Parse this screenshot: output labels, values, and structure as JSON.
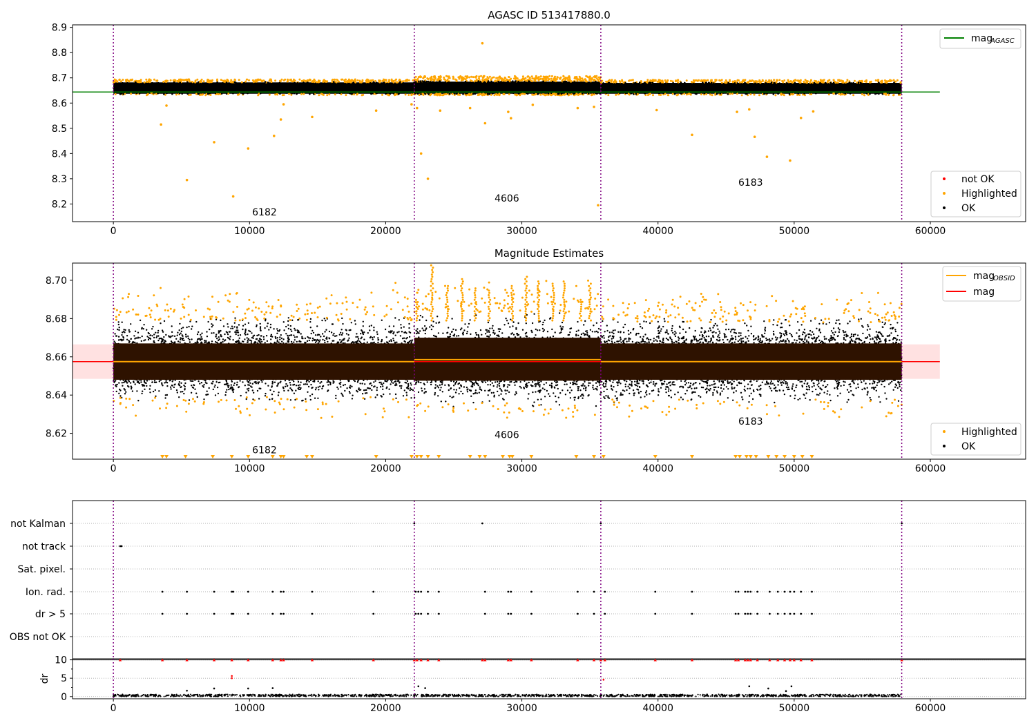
{
  "figure": {
    "title_top": "AGASC ID 513417880.0",
    "title_mid": "Magnitude Estimates"
  },
  "colors": {
    "ok": "#000000",
    "highlighted": "#ffa500",
    "not_ok": "#ff0000",
    "mag_agasc_line": "#008000",
    "mag_line": "#ff0000",
    "mag_obsid_line": "#ffa500",
    "band_fill": "#ffc8c8",
    "dense_fill": "#2e1200",
    "obsid_divider": "#800080"
  },
  "chart_data": [
    {
      "type": "scatter",
      "title": "AGASC ID 513417880.0",
      "xlabel": "",
      "ylabel": "",
      "xlim": [
        -3000,
        67000
      ],
      "ylim": [
        8.13,
        8.91
      ],
      "xticks": [
        0,
        10000,
        20000,
        30000,
        40000,
        50000,
        60000
      ],
      "yticks": [
        8.2,
        8.3,
        8.4,
        8.5,
        8.6,
        8.7,
        8.8,
        8.9
      ],
      "legend_lines": [
        {
          "name": "mag",
          "subscript": "AGASC",
          "color": "#008000"
        }
      ],
      "legend_markers": [
        {
          "name": "not OK",
          "color": "#ff0000"
        },
        {
          "name": "Highlighted",
          "color": "#ffa500"
        },
        {
          "name": "OK",
          "color": "#000000"
        }
      ],
      "lines": [
        {
          "name": "mag_AGASC",
          "x": [
            -3000,
            60700
          ],
          "y": [
            8.644,
            8.644
          ]
        }
      ],
      "obsid_boundaries": [
        0,
        22100,
        35800,
        57900
      ],
      "obsid_labels": [
        {
          "text": "6182",
          "x": 11100,
          "y": 8.155
        },
        {
          "text": "4606",
          "x": 28900,
          "y": 8.21
        },
        {
          "text": "6183",
          "x": 46800,
          "y": 8.272
        }
      ],
      "dense_band": [
        {
          "x": [
            0,
            22100
          ],
          "y": [
            8.637,
            8.682
          ]
        },
        {
          "x": [
            22100,
            35800
          ],
          "y": [
            8.637,
            8.685
          ]
        },
        {
          "x": [
            35800,
            57900
          ],
          "y": [
            8.637,
            8.68
          ]
        }
      ],
      "highlighted_outliers": {
        "x": [
          2800,
          3500,
          3900,
          5400,
          7400,
          8800,
          9900,
          11800,
          12300,
          12500,
          14600,
          19300,
          21900,
          22300,
          22600,
          23100,
          24000,
          26200,
          27100,
          27300,
          29000,
          29200,
          30800,
          34100,
          35300,
          35600,
          39900,
          42500,
          45800,
          46700,
          47100,
          48000,
          49700,
          50500,
          51400,
          52900
        ],
        "y": [
          8.64,
          8.515,
          8.59,
          8.295,
          8.445,
          8.23,
          8.42,
          8.47,
          8.535,
          8.595,
          8.545,
          8.57,
          8.595,
          8.58,
          8.4,
          8.3,
          8.57,
          8.58,
          8.837,
          8.52,
          8.565,
          8.54,
          8.593,
          8.58,
          8.585,
          8.195,
          8.572,
          8.474,
          8.565,
          8.575,
          8.466,
          8.387,
          8.372,
          8.541,
          8.567,
          8.638
        ]
      }
    },
    {
      "type": "scatter",
      "title": "Magnitude Estimates",
      "xlabel": "",
      "ylabel": "",
      "xlim": [
        -3000,
        67000
      ],
      "ylim": [
        8.6065,
        8.709
      ],
      "xticks": [
        0,
        10000,
        20000,
        30000,
        40000,
        50000,
        60000
      ],
      "yticks": [
        8.62,
        8.64,
        8.66,
        8.68,
        8.7
      ],
      "legend_lines": [
        {
          "name": "mag",
          "subscript": "OBSID",
          "color": "#ffa500"
        },
        {
          "name": "mag",
          "subscript": "",
          "color": "#ff0000"
        }
      ],
      "legend_markers": [
        {
          "name": "Highlighted",
          "color": "#ffa500"
        },
        {
          "name": "OK",
          "color": "#000000"
        }
      ],
      "mag_band": {
        "x": [
          -3000,
          60700
        ],
        "y": [
          8.6485,
          8.6665
        ]
      },
      "lines": [
        {
          "name": "mag",
          "x": [
            -3000,
            60700
          ],
          "y": [
            8.6575,
            8.6575
          ]
        },
        {
          "name": "mag_OBSID",
          "segments": [
            [
              0,
              22100,
              8.6575
            ],
            [
              22100,
              35800,
              8.6585
            ],
            [
              35800,
              57900,
              8.6575
            ]
          ]
        }
      ],
      "obsid_boundaries": [
        0,
        22100,
        35800,
        57900
      ],
      "obsid_labels": [
        {
          "text": "6182",
          "x": 11100,
          "y": 8.6095
        },
        {
          "text": "4606",
          "x": 28900,
          "y": 8.6175
        },
        {
          "text": "6183",
          "x": 46800,
          "y": 8.6245
        }
      ],
      "dense_band": [
        {
          "x": [
            0,
            22100
          ],
          "y": [
            8.648,
            8.667
          ]
        },
        {
          "x": [
            22100,
            35800
          ],
          "y": [
            8.6475,
            8.67
          ]
        },
        {
          "x": [
            35800,
            57900
          ],
          "y": [
            8.648,
            8.667
          ]
        }
      ],
      "scatter_envelope": [
        {
          "x": [
            0,
            22100
          ],
          "ok_y": [
            8.637,
            8.681
          ],
          "hl_y": [
            8.628,
            8.7
          ]
        },
        {
          "x": [
            22100,
            35800
          ],
          "ok_y": [
            8.634,
            8.685
          ],
          "hl_y": [
            8.628,
            8.709
          ]
        },
        {
          "x": [
            35800,
            57900
          ],
          "ok_y": [
            8.636,
            8.68
          ],
          "hl_y": [
            8.628,
            8.694
          ]
        }
      ],
      "highlighted_spikes_x": [
        22300,
        23400,
        24500,
        25600,
        26600,
        27600,
        29300,
        30300,
        31200,
        32300,
        33100,
        34300,
        35000
      ],
      "below_axis_markers_x": [
        3600,
        3900,
        5300,
        7300,
        8700,
        9900,
        11700,
        12300,
        12500,
        14200,
        14600,
        19300,
        21900,
        22300,
        22600,
        23100,
        23900,
        26200,
        26900,
        27300,
        28600,
        29100,
        29300,
        30700,
        34000,
        35300,
        36000,
        39800,
        42500,
        45700,
        46000,
        46500,
        46800,
        47200,
        48100,
        48700,
        49300,
        50000,
        50600,
        51300
      ]
    },
    {
      "type": "scatter",
      "title": "",
      "xlabel": "",
      "ylabel": "",
      "xlim": [
        -3000,
        67000
      ],
      "categories": [
        "not Kalman",
        "not track",
        "Sat. pixel.",
        "Ion. rad.",
        "dr > 5",
        "OBS not OK"
      ],
      "obsid_boundaries": [
        0,
        22100,
        35800,
        57900
      ],
      "flags": [
        {
          "category": "not Kalman",
          "x": [
            22100,
            27100,
            35800,
            57900
          ]
        },
        {
          "category": "not track",
          "x": [
            500,
            600
          ]
        },
        {
          "category": "Sat. pixel.",
          "x": []
        },
        {
          "category": "Ion. rad.",
          "x": [
            3600,
            5400,
            7400,
            8700,
            8800,
            9900,
            11700,
            12300,
            12500,
            14600,
            19100,
            22200,
            22400,
            22600,
            23100,
            23900,
            27300,
            29000,
            29200,
            30700,
            34100,
            35300,
            36100,
            39800,
            42500,
            45700,
            45900,
            46400,
            46600,
            46800,
            47300,
            48200,
            48800,
            49300,
            49700,
            50000,
            50500,
            51300
          ]
        },
        {
          "category": "dr > 5",
          "x": [
            3600,
            5400,
            7400,
            8700,
            8800,
            9900,
            11700,
            12300,
            12500,
            14600,
            19100,
            22200,
            22400,
            22600,
            23100,
            23900,
            27300,
            29000,
            29200,
            30700,
            34100,
            35300,
            36100,
            39800,
            42500,
            45700,
            45900,
            46400,
            46600,
            46800,
            47300,
            48200,
            48800,
            49300,
            49700,
            50000,
            50500,
            51300
          ]
        },
        {
          "category": "OBS not OK",
          "x": []
        }
      ]
    },
    {
      "type": "scatter",
      "title": "",
      "xlabel": "",
      "ylabel": "dr",
      "xlim": [
        -3000,
        67000
      ],
      "ylim": [
        -0.6,
        10.3
      ],
      "xticks": [
        0,
        10000,
        20000,
        30000,
        40000,
        50000,
        60000
      ],
      "yticks": [
        0,
        5,
        10
      ],
      "clipped_markers": {
        "y": 10,
        "x": [
          500,
          3600,
          5400,
          7400,
          8700,
          9900,
          11700,
          12300,
          12500,
          14600,
          19100,
          22100,
          22300,
          22600,
          23100,
          23900,
          27100,
          27300,
          29000,
          29200,
          30700,
          34100,
          35300,
          35800,
          36100,
          39800,
          42500,
          45700,
          45900,
          46400,
          46600,
          46800,
          47300,
          48200,
          48800,
          49300,
          49700,
          50000,
          50500,
          51300,
          57900
        ]
      },
      "red_points": {
        "x": [
          8700,
          8700,
          36000
        ],
        "y": [
          5.6,
          5.0,
          4.6
        ]
      },
      "black_points": {
        "x": [
          5400,
          7400,
          9900,
          11700,
          22400,
          22900,
          46700,
          48100,
          49800,
          49400
        ],
        "y": [
          1.6,
          2.2,
          2.2,
          2.3,
          2.8,
          2.3,
          2.8,
          2.2,
          2.8,
          1.5
        ]
      },
      "baseline_band": {
        "x": [
          0,
          57900
        ],
        "y": [
          0,
          0.6
        ]
      }
    }
  ]
}
